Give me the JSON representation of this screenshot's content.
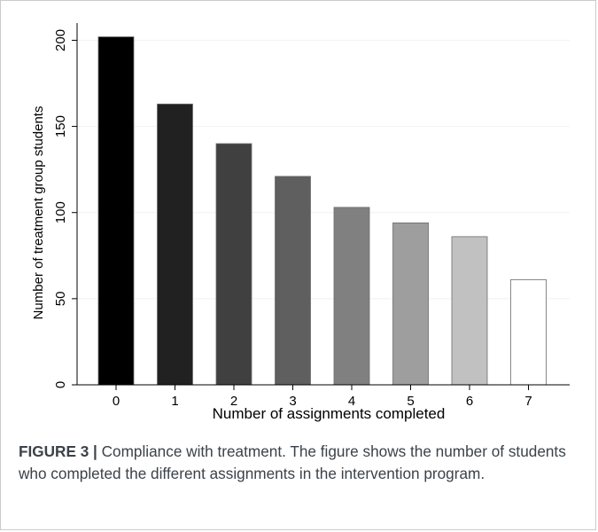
{
  "chart_data": {
    "type": "bar",
    "categories": [
      "0",
      "1",
      "2",
      "3",
      "4",
      "5",
      "6",
      "7"
    ],
    "values": [
      202,
      163,
      140,
      121,
      103,
      94,
      86,
      61
    ],
    "bar_colors": [
      "#000000",
      "#212121",
      "#404040",
      "#5f5f5f",
      "#808080",
      "#9e9e9e",
      "#c1c1c1",
      "#ffffff"
    ],
    "xlabel": "Number of assignments completed",
    "ylabel": "Number of treatment group students",
    "ylim": [
      0,
      210
    ],
    "yticks": [
      0,
      50,
      100,
      150,
      200
    ],
    "grid": true,
    "grid_color": "#eef2f4"
  },
  "caption": {
    "label": "FIGURE 3 |",
    "text": " Compliance with treatment. The figure shows the number of students who completed the different assignments in the intervention program."
  }
}
